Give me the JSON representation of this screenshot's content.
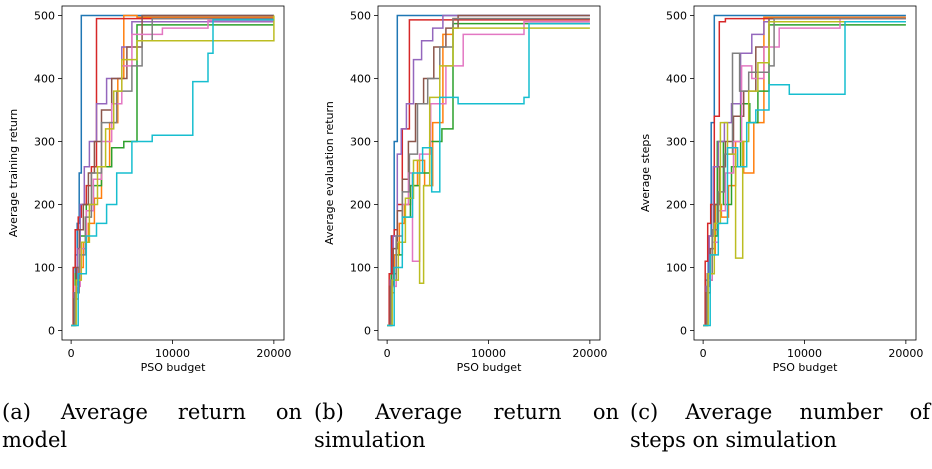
{
  "colors": [
    "#1f77b4",
    "#ff7f0e",
    "#2ca02c",
    "#d62728",
    "#9467bd",
    "#8c564b",
    "#e377c2",
    "#7f7f7f",
    "#bcbd22",
    "#17becf"
  ],
  "captions": [
    "(a) Average return on model",
    "(b) Average return on simulation",
    "(c) Average number of steps on simulation"
  ],
  "chart_data": [
    {
      "type": "line",
      "title": "",
      "xlabel": "PSO budget",
      "ylabel": "Average training return",
      "xlim": [
        -900,
        21000
      ],
      "ylim": [
        -15,
        515
      ],
      "xticks": [
        0,
        10000,
        20000
      ],
      "yticks": [
        0,
        100,
        200,
        300,
        400,
        500
      ],
      "grid": false,
      "series": [
        {
          "x": [
            0,
            200,
            400,
            600,
            800,
            1000,
            20000
          ],
          "y": [
            8,
            60,
            120,
            170,
            250,
            500,
            500
          ]
        },
        {
          "x": [
            0,
            300,
            700,
            1200,
            1700,
            2300,
            3000,
            3800,
            4600,
            5200,
            6500,
            20000
          ],
          "y": [
            8,
            50,
            100,
            140,
            170,
            210,
            260,
            330,
            400,
            500,
            497,
            497
          ]
        },
        {
          "x": [
            0,
            400,
            900,
            1500,
            2200,
            3000,
            4000,
            5200,
            6500,
            20000
          ],
          "y": [
            8,
            90,
            150,
            200,
            230,
            260,
            290,
            300,
            485,
            485
          ]
        },
        {
          "x": [
            0,
            200,
            400,
            700,
            1000,
            1500,
            2000,
            2500,
            20000
          ],
          "y": [
            8,
            100,
            160,
            180,
            200,
            230,
            260,
            495,
            495
          ]
        },
        {
          "x": [
            0,
            300,
            600,
            900,
            1300,
            1800,
            2500,
            3500,
            5000,
            6000,
            20000
          ],
          "y": [
            8,
            60,
            130,
            200,
            260,
            300,
            360,
            400,
            450,
            490,
            490
          ]
        },
        {
          "x": [
            0,
            250,
            500,
            800,
            1200,
            1700,
            2300,
            3000,
            4000,
            5500,
            7000,
            20000
          ],
          "y": [
            8,
            50,
            100,
            160,
            200,
            250,
            300,
            350,
            400,
            450,
            500,
            500
          ]
        },
        {
          "x": [
            0,
            400,
            900,
            1500,
            2200,
            3000,
            4000,
            5000,
            6000,
            9000,
            13500,
            20000
          ],
          "y": [
            8,
            70,
            130,
            190,
            240,
            300,
            360,
            420,
            470,
            480,
            492,
            492
          ]
        },
        {
          "x": [
            0,
            350,
            800,
            1400,
            2000,
            3000,
            4500,
            6000,
            7000,
            8000,
            20000
          ],
          "y": [
            8,
            60,
            120,
            180,
            250,
            330,
            380,
            420,
            460,
            495,
            495
          ]
        },
        {
          "x": [
            0,
            500,
            1000,
            1800,
            2600,
            3400,
            4200,
            5000,
            6500,
            20000
          ],
          "y": [
            8,
            80,
            140,
            200,
            260,
            320,
            380,
            430,
            460,
            500
          ]
        },
        {
          "x": [
            0,
            700,
            1500,
            2500,
            3500,
            4500,
            6000,
            8000,
            12000,
            13500,
            14000,
            20000
          ],
          "y": [
            8,
            90,
            150,
            170,
            200,
            250,
            300,
            310,
            395,
            440,
            493,
            493
          ]
        }
      ]
    },
    {
      "type": "line",
      "title": "",
      "xlabel": "PSO budget",
      "ylabel": "Average evaluation return",
      "xlim": [
        -900,
        21000
      ],
      "ylim": [
        -15,
        515
      ],
      "xticks": [
        0,
        10000,
        20000
      ],
      "yticks": [
        0,
        100,
        200,
        300,
        400,
        500
      ],
      "grid": false,
      "series": [
        {
          "x": [
            0,
            200,
            400,
            700,
            1000,
            20000
          ],
          "y": [
            8,
            70,
            150,
            300,
            500,
            500
          ]
        },
        {
          "x": [
            0,
            300,
            700,
            1200,
            1700,
            2300,
            3000,
            3700,
            4500,
            5500,
            6500,
            20000
          ],
          "y": [
            8,
            60,
            120,
            170,
            200,
            230,
            270,
            230,
            330,
            470,
            495,
            495
          ]
        },
        {
          "x": [
            0,
            400,
            900,
            1500,
            2300,
            3200,
            4200,
            5400,
            6500,
            20000
          ],
          "y": [
            8,
            90,
            120,
            180,
            230,
            250,
            300,
            320,
            487,
            487
          ]
        },
        {
          "x": [
            0,
            200,
            450,
            700,
            1000,
            1500,
            2200,
            20000
          ],
          "y": [
            8,
            90,
            150,
            160,
            200,
            320,
            493,
            493
          ]
        },
        {
          "x": [
            0,
            300,
            600,
            1000,
            1400,
            1900,
            2600,
            3400,
            4500,
            5500,
            20000
          ],
          "y": [
            8,
            80,
            150,
            280,
            320,
            360,
            430,
            460,
            480,
            500,
            500
          ]
        },
        {
          "x": [
            0,
            300,
            600,
            1000,
            1500,
            2100,
            2800,
            3600,
            4600,
            5800,
            7000,
            20000
          ],
          "y": [
            8,
            70,
            130,
            190,
            240,
            300,
            360,
            400,
            450,
            480,
            500,
            500
          ]
        },
        {
          "x": [
            0,
            400,
            900,
            1500,
            2100,
            2500,
            3200,
            4300,
            5800,
            7500,
            13500,
            20000
          ],
          "y": [
            8,
            70,
            140,
            200,
            250,
            110,
            280,
            360,
            420,
            470,
            490,
            490
          ]
        },
        {
          "x": [
            0,
            400,
            900,
            1500,
            2200,
            3000,
            4000,
            5200,
            6500,
            20000
          ],
          "y": [
            8,
            80,
            150,
            220,
            280,
            360,
            400,
            450,
            495,
            495
          ]
        },
        {
          "x": [
            0,
            500,
            1100,
            1800,
            2600,
            3200,
            3600,
            4200,
            5200,
            6500,
            20000
          ],
          "y": [
            8,
            80,
            140,
            210,
            270,
            75,
            230,
            370,
            420,
            480,
            480
          ]
        },
        {
          "x": [
            0,
            700,
            1500,
            2500,
            3500,
            4400,
            5200,
            7000,
            13500,
            14000,
            20000
          ],
          "y": [
            8,
            100,
            180,
            250,
            290,
            220,
            370,
            360,
            370,
            487,
            487
          ]
        }
      ]
    },
    {
      "type": "line",
      "title": "",
      "xlabel": "PSO budget",
      "ylabel": "Average steps",
      "xlim": [
        -900,
        21000
      ],
      "ylim": [
        -15,
        515
      ],
      "xticks": [
        0,
        10000,
        20000
      ],
      "yticks": [
        0,
        100,
        200,
        300,
        400,
        500
      ],
      "grid": false,
      "series": [
        {
          "x": [
            0,
            200,
            500,
            800,
            1100,
            20000
          ],
          "y": [
            8,
            80,
            150,
            330,
            500,
            500
          ]
        },
        {
          "x": [
            0,
            300,
            700,
            1200,
            1800,
            2500,
            3200,
            4000,
            5000,
            6000,
            20000
          ],
          "y": [
            8,
            60,
            120,
            200,
            180,
            230,
            300,
            250,
            330,
            497,
            497
          ]
        },
        {
          "x": [
            0,
            400,
            900,
            1400,
            2000,
            2800,
            3700,
            4600,
            5400,
            6500,
            20000
          ],
          "y": [
            8,
            80,
            150,
            300,
            200,
            260,
            360,
            330,
            380,
            485,
            485
          ]
        },
        {
          "x": [
            0,
            200,
            450,
            750,
            1100,
            1600,
            2200,
            20000
          ],
          "y": [
            8,
            110,
            170,
            200,
            340,
            490,
            495,
            495
          ]
        },
        {
          "x": [
            0,
            300,
            600,
            1000,
            1500,
            2100,
            2800,
            3700,
            4800,
            6000,
            20000
          ],
          "y": [
            8,
            70,
            150,
            260,
            300,
            330,
            360,
            440,
            470,
            490,
            490
          ]
        },
        {
          "x": [
            0,
            300,
            700,
            1100,
            1600,
            2200,
            3000,
            4000,
            5200,
            6500,
            20000
          ],
          "y": [
            8,
            60,
            130,
            200,
            260,
            300,
            340,
            380,
            450,
            495,
            495
          ]
        },
        {
          "x": [
            0,
            400,
            900,
            1500,
            2200,
            3000,
            3800,
            4800,
            6000,
            7500,
            13500,
            20000
          ],
          "y": [
            8,
            80,
            140,
            190,
            250,
            300,
            420,
            400,
            450,
            480,
            495,
            495
          ]
        },
        {
          "x": [
            0,
            400,
            900,
            1500,
            2100,
            2900,
            3600,
            4500,
            6500,
            7000,
            20000
          ],
          "y": [
            8,
            90,
            160,
            220,
            280,
            440,
            380,
            410,
            420,
            495,
            495
          ]
        },
        {
          "x": [
            0,
            500,
            1100,
            1700,
            2400,
            3200,
            3900,
            4500,
            5400,
            6500,
            20000
          ],
          "y": [
            8,
            90,
            170,
            330,
            280,
            115,
            300,
            380,
            425,
            490,
            490
          ]
        },
        {
          "x": [
            0,
            700,
            1500,
            2400,
            3400,
            4300,
            5200,
            6500,
            8500,
            13500,
            14000,
            20000
          ],
          "y": [
            8,
            120,
            170,
            290,
            260,
            330,
            350,
            390,
            375,
            375,
            490,
            490
          ]
        }
      ]
    }
  ]
}
